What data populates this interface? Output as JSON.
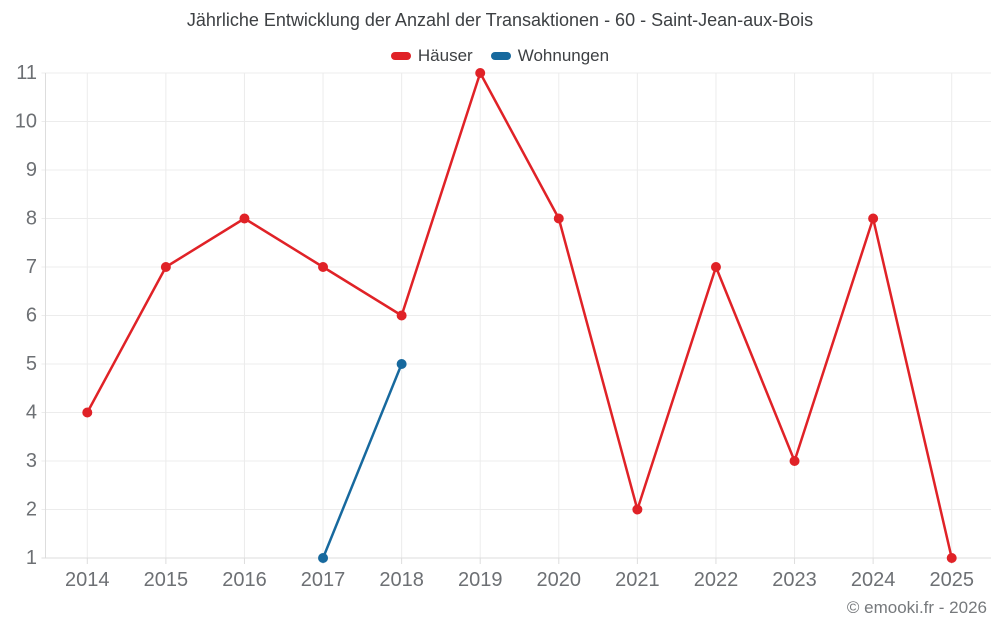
{
  "header": {
    "title": "Jährliche Entwicklung der Anzahl der Transaktionen - 60 - Saint-Jean-aux-Bois"
  },
  "legend": {
    "items": [
      {
        "label": "Häuser",
        "color": "#e02227"
      },
      {
        "label": "Wohnungen",
        "color": "#17699e"
      }
    ]
  },
  "footer": {
    "credit": "© emooki.fr - 2026"
  },
  "colors": {
    "series_hauser": "#e02227",
    "series_wohnungen": "#17699e",
    "gridline": "#ececec",
    "axis_line": "#dddddd",
    "tick_text": "#6d7074",
    "title_text": "#3d4043",
    "background": "#ffffff"
  },
  "chart_data": {
    "type": "line",
    "title": "Jährliche Entwicklung der Anzahl der Transaktionen - 60 - Saint-Jean-aux-Bois",
    "x": [
      2014,
      2015,
      2016,
      2017,
      2018,
      2019,
      2020,
      2021,
      2022,
      2023,
      2024,
      2025
    ],
    "series": [
      {
        "name": "Häuser",
        "color": "#e02227",
        "values": [
          4,
          7,
          8,
          7,
          6,
          11,
          8,
          2,
          7,
          3,
          8,
          1
        ]
      },
      {
        "name": "Wohnungen",
        "color": "#17699e",
        "values": [
          null,
          null,
          null,
          1,
          5,
          null,
          null,
          null,
          null,
          null,
          null,
          null
        ]
      }
    ],
    "xlabel": "",
    "ylabel": "",
    "ylim": [
      1,
      11
    ],
    "yticks": [
      1,
      2,
      3,
      4,
      5,
      6,
      7,
      8,
      9,
      10,
      11
    ],
    "grid": true,
    "legend_position": "top",
    "marker_radius": 5,
    "line_width": 2.5
  }
}
